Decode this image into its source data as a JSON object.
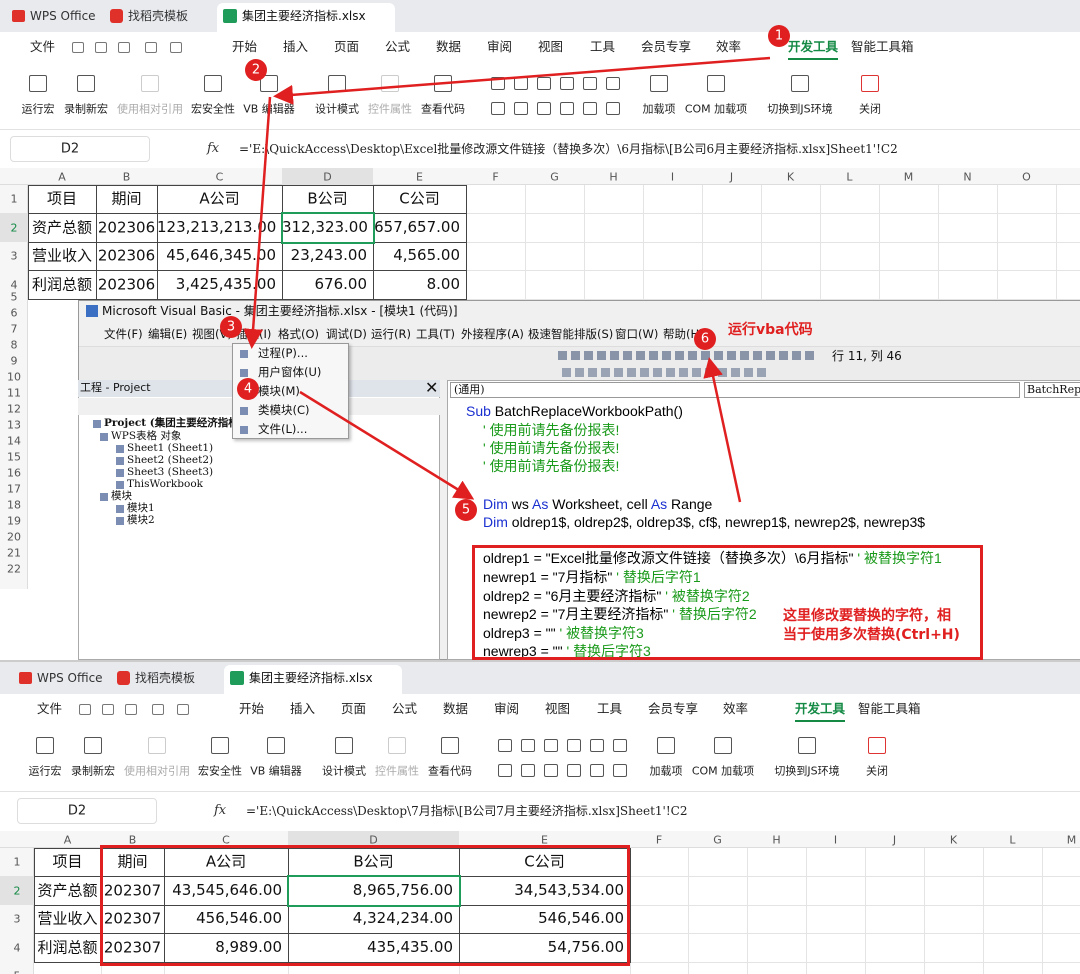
{
  "top": {
    "tabs": [
      "WPS Office",
      "找稻壳模板",
      "集团主要经济指标.xlsx"
    ],
    "menu": [
      "文件",
      "开始",
      "插入",
      "页面",
      "公式",
      "数据",
      "审阅",
      "视图",
      "工具",
      "会员专享",
      "效率",
      "开发工具",
      "智能工具箱"
    ],
    "ribbon": [
      "运行宏",
      "录制新宏",
      "使用相对引用",
      "宏安全性",
      "VB 编辑器",
      "设计模式",
      "控件属性",
      "查看代码",
      "加载项",
      "COM 加载项",
      "切换到JS环境",
      "关闭"
    ],
    "name_box": "D2",
    "fx": "fx",
    "formula": "='E:\\QuickAccess\\Desktop\\Excel批量修改源文件链接（替换多次）\\6月指标\\[B公司6月主要经济指标.xlsx]Sheet1'!C2",
    "columns": [
      "A",
      "B",
      "C",
      "D",
      "E",
      "F",
      "G",
      "H",
      "I",
      "J",
      "K",
      "L",
      "M",
      "N",
      "O"
    ],
    "row_numbers": [
      "1",
      "2",
      "3",
      "4",
      "5",
      "6",
      "7",
      "8",
      "9",
      "10",
      "11",
      "12",
      "13",
      "14",
      "15",
      "16",
      "17",
      "18",
      "19",
      "20",
      "21",
      "22"
    ],
    "table": [
      [
        "项目",
        "期间",
        "A公司",
        "B公司",
        "C公司"
      ],
      [
        "资产总额",
        "202306",
        "123,213,213.00",
        "312,323.00",
        "657,657.00"
      ],
      [
        "营业收入",
        "202306",
        "45,646,345.00",
        "23,243.00",
        "4,565.00"
      ],
      [
        "利润总额",
        "202306",
        "3,425,435.00",
        "676.00",
        "8.00"
      ]
    ]
  },
  "vba": {
    "title": "Microsoft Visual Basic - 集团主要经济指标.xlsx - [模块1 (代码)]",
    "menu": [
      "文件(F)",
      "编辑(E)",
      "视图(V)",
      "插入(I)",
      "格式(O)",
      "调试(D)",
      "运行(R)",
      "工具(T)",
      "外接程序(A)",
      "极速智能排版(S)",
      "窗口(W)",
      "帮助(H)"
    ],
    "cursor_position": "行 11, 列 46",
    "project_title": "工程 - Project",
    "tree": [
      "Project (集团主要经济指标",
      "WPS表格 对象",
      "Sheet1 (Sheet1)",
      "Sheet2 (Sheet2)",
      "Sheet3 (Sheet3)",
      "ThisWorkbook",
      "模块",
      "模块1",
      "模块2"
    ],
    "insert_menu": [
      "过程(P)...",
      "用户窗体(U)",
      "模块(M)",
      "类模块(C)",
      "文件(L)..."
    ],
    "object_combo": "(通用)",
    "proc_combo": "BatchRepl",
    "code": [
      [
        {
          "text": "Sub",
          "color": "#1a2fd0"
        },
        {
          "text": " BatchReplaceWorkbookPath()",
          "color": "#000000"
        }
      ],
      [
        {
          "text": "' 使用前请先备份报表!",
          "color": "#1a9a1a"
        }
      ],
      [
        {
          "text": "' 使用前请先备份报表!",
          "color": "#1a9a1a"
        }
      ],
      [
        {
          "text": "' 使用前请先备份报表!",
          "color": "#1a9a1a"
        }
      ],
      [
        {
          "text": "Dim",
          "color": "#1a2fd0"
        },
        {
          "text": " ws ",
          "color": "#000000"
        },
        {
          "text": "As",
          "color": "#1a2fd0"
        },
        {
          "text": " Worksheet, cell ",
          "color": "#000000"
        },
        {
          "text": "As",
          "color": "#1a2fd0"
        },
        {
          "text": " Range",
          "color": "#000000"
        }
      ],
      [
        {
          "text": "Dim",
          "color": "#1a2fd0"
        },
        {
          "text": " oldrep1$, oldrep2$, oldrep3$, cf$, newrep1$, newrep2$, newrep3$",
          "color": "#000000"
        }
      ],
      [
        {
          "text": "oldrep1 = \"Excel批量修改源文件链接（替换多次）\\6月指标\" ",
          "color": "#000000"
        },
        {
          "text": "' 被替换字符1",
          "color": "#1a9a1a"
        }
      ],
      [
        {
          "text": "newrep1 = \"7月指标\" ",
          "color": "#000000"
        },
        {
          "text": "' 替换后字符1",
          "color": "#1a9a1a"
        }
      ],
      [
        {
          "text": "oldrep2 = \"6月主要经济指标\" ",
          "color": "#000000"
        },
        {
          "text": "' 被替换字符2",
          "color": "#1a9a1a"
        }
      ],
      [
        {
          "text": "newrep2 = \"7月主要经济指标\" ",
          "color": "#000000"
        },
        {
          "text": "' 替换后字符2",
          "color": "#1a9a1a"
        }
      ],
      [
        {
          "text": "oldrep3 = \"\" ",
          "color": "#000000"
        },
        {
          "text": "' 被替换字符3",
          "color": "#1a9a1a"
        }
      ],
      [
        {
          "text": "newrep3 = \"\" ",
          "color": "#000000"
        },
        {
          "text": "' 替换后字符3",
          "color": "#1a9a1a"
        }
      ]
    ]
  },
  "annotations": {
    "steps": [
      "1",
      "2",
      "3",
      "4",
      "5",
      "6"
    ],
    "run_note": "运行vba代码",
    "edit_note": [
      "这里修改要替换的字符，相",
      "当于使用多次替换(Ctrl+H)"
    ]
  },
  "bottom": {
    "tabs": [
      "WPS Office",
      "找稻壳模板",
      "集团主要经济指标.xlsx"
    ],
    "menu": [
      "文件",
      "开始",
      "插入",
      "页面",
      "公式",
      "数据",
      "审阅",
      "视图",
      "工具",
      "会员专享",
      "效率",
      "开发工具",
      "智能工具箱"
    ],
    "ribbon": [
      "运行宏",
      "录制新宏",
      "使用相对引用",
      "宏安全性",
      "VB 编辑器",
      "设计模式",
      "控件属性",
      "查看代码",
      "加载项",
      "COM 加载项",
      "切换到JS环境",
      "关闭"
    ],
    "name_box": "D2",
    "fx": "fx",
    "formula": "='E:\\QuickAccess\\Desktop\\7月指标\\[B公司7月主要经济指标.xlsx]Sheet1'!C2",
    "columns": [
      "A",
      "B",
      "C",
      "D",
      "E",
      "F",
      "G",
      "H",
      "I",
      "J",
      "K",
      "L",
      "M"
    ],
    "row_numbers": [
      "1",
      "2",
      "3",
      "4",
      "5"
    ],
    "table": [
      [
        "项目",
        "期间",
        "A公司",
        "B公司",
        "C公司"
      ],
      [
        "资产总额",
        "202307",
        "43,545,646.00",
        "8,965,756.00",
        "34,543,534.00"
      ],
      [
        "营业收入",
        "202307",
        "456,546.00",
        "4,324,234.00",
        "546,546.00"
      ],
      [
        "利润总额",
        "202307",
        "8,989.00",
        "435,435.00",
        "54,756.00"
      ]
    ]
  }
}
